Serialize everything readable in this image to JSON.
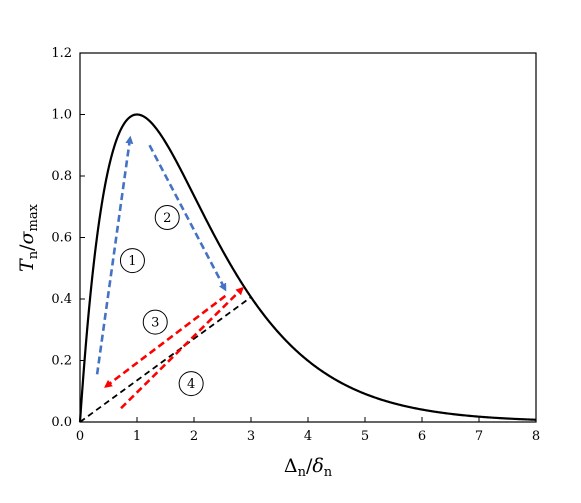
{
  "chart_data": {
    "type": "line",
    "title": "",
    "xlabel": {
      "main": "Δ",
      "sub1": "n",
      "sep": "/",
      "main2": "δ",
      "sub2": "n"
    },
    "ylabel": {
      "main": "T",
      "sub1": "n",
      "sep": "/",
      "main2": "σ",
      "sub2": "max"
    },
    "xlim": [
      0,
      8
    ],
    "ylim": [
      0,
      1.2
    ],
    "xticks": [
      "0",
      "1",
      "2",
      "3",
      "4",
      "5",
      "6",
      "7",
      "8"
    ],
    "yticks": [
      "0.0",
      "0.2",
      "0.4",
      "0.6",
      "0.8",
      "1.0",
      "1.2"
    ],
    "grid": false,
    "series": [
      {
        "style": "solid",
        "color": "#000000",
        "function": "x*exp(1-x)",
        "x": [
          0,
          0.05,
          0.1,
          0.15,
          0.2,
          0.3,
          0.4,
          0.5,
          0.6,
          0.7,
          0.8,
          0.9,
          1.0,
          1.1,
          1.2,
          1.4,
          1.6,
          1.8,
          2.0,
          2.2,
          2.5,
          2.8,
          3.0,
          3.3,
          3.6,
          4.0,
          4.5,
          5.0,
          5.5,
          6.0,
          6.5,
          7.0,
          7.5,
          8.0
        ],
        "y": [
          0,
          0.129,
          0.246,
          0.35,
          0.445,
          0.605,
          0.73,
          0.824,
          0.895,
          0.945,
          0.977,
          0.995,
          1.0,
          0.995,
          0.982,
          0.938,
          0.878,
          0.809,
          0.736,
          0.663,
          0.558,
          0.463,
          0.406,
          0.331,
          0.267,
          0.199,
          0.136,
          0.092,
          0.061,
          0.04,
          0.026,
          0.017,
          0.011,
          0.007
        ]
      },
      {
        "style": "dashed",
        "color": "#000000",
        "x": [
          0,
          3.0
        ],
        "y": [
          0,
          0.406
        ]
      }
    ],
    "annotations": [
      {
        "label": "1",
        "x": 0.92,
        "y": 0.525
      },
      {
        "label": "2",
        "x": 1.53,
        "y": 0.665
      },
      {
        "label": "3",
        "x": 1.32,
        "y": 0.325
      },
      {
        "label": "4",
        "x": 1.95,
        "y": 0.125
      }
    ],
    "arrows": [
      {
        "color": "#4472c4",
        "from": [
          0.3,
          0.155
        ],
        "to": [
          0.88,
          0.925
        ]
      },
      {
        "color": "#4472c4",
        "from": [
          1.22,
          0.9
        ],
        "to": [
          2.55,
          0.43
        ]
      },
      {
        "color": "#ff0000",
        "from": [
          2.55,
          0.41
        ],
        "to": [
          0.45,
          0.115
        ]
      },
      {
        "color": "#ff0000",
        "from": [
          0.72,
          0.045
        ],
        "to": [
          2.85,
          0.435
        ]
      }
    ]
  }
}
